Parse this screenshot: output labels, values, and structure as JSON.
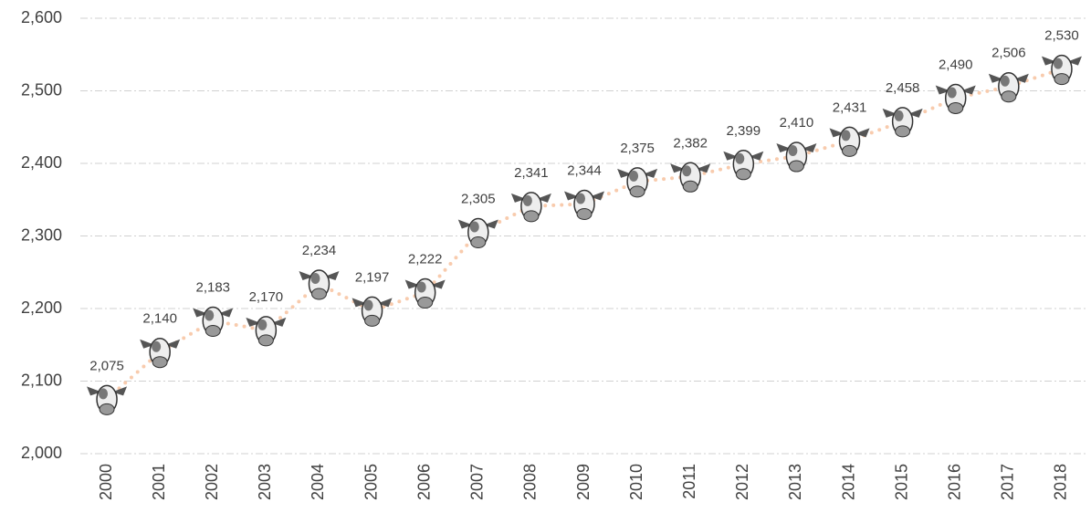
{
  "chart_data": {
    "type": "line",
    "categories": [
      "2000",
      "2001",
      "2002",
      "2003",
      "2004",
      "2005",
      "2006",
      "2007",
      "2008",
      "2009",
      "2010",
      "2011",
      "2012",
      "2013",
      "2014",
      "2015",
      "2016",
      "2017",
      "2018"
    ],
    "values": [
      2075,
      2140,
      2183,
      2170,
      2234,
      2197,
      2222,
      2305,
      2341,
      2344,
      2375,
      2382,
      2399,
      2410,
      2431,
      2458,
      2490,
      2506,
      2530
    ],
    "value_labels": [
      "2,075",
      "2,140",
      "2,183",
      "2,170",
      "2,234",
      "2,197",
      "2,222",
      "2,305",
      "2,341",
      "2,344",
      "2,375",
      "2,382",
      "2,399",
      "2,410",
      "2,431",
      "2,458",
      "2,490",
      "2,506",
      "2,530"
    ],
    "color": "#f8cbad",
    "ylim": [
      2000,
      2600
    ],
    "yticks": [
      {
        "value": 2000,
        "label": "2,000"
      },
      {
        "value": 2100,
        "label": "2,100"
      },
      {
        "value": 2200,
        "label": "2,200"
      },
      {
        "value": 2300,
        "label": "2,300"
      },
      {
        "value": 2400,
        "label": "2,400"
      },
      {
        "value": 2500,
        "label": "2,500"
      },
      {
        "value": 2600,
        "label": "2,600"
      }
    ],
    "grid": true
  }
}
